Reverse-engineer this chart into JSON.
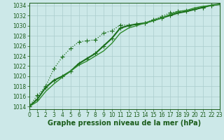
{
  "x": [
    0,
    1,
    2,
    3,
    4,
    5,
    6,
    7,
    8,
    9,
    10,
    11,
    12,
    13,
    14,
    15,
    16,
    17,
    18,
    19,
    20,
    21,
    22,
    23
  ],
  "lines": [
    {
      "label": "line_dotted_high",
      "y": [
        1014.1,
        1016.2,
        1018.0,
        1021.5,
        1023.8,
        1025.5,
        1026.8,
        1027.0,
        1027.2,
        1028.5,
        1029.0,
        1030.1,
        1030.1,
        1030.2,
        1030.5,
        1031.2,
        1031.8,
        1032.5,
        1032.8,
        1033.0,
        1033.2,
        1033.6,
        1034.0,
        1034.2
      ],
      "color": "#1a6e1a",
      "linewidth": 0.9,
      "marker": "+",
      "markersize": 4,
      "markeredgewidth": 0.8,
      "linestyle": ":"
    },
    {
      "label": "line_solid_main",
      "y": [
        1014.0,
        1015.5,
        1017.8,
        1019.2,
        1020.0,
        1021.0,
        1022.5,
        1023.5,
        1024.5,
        1026.0,
        1027.5,
        1029.5,
        1030.0,
        1030.3,
        1030.5,
        1031.0,
        1031.5,
        1032.0,
        1032.5,
        1032.8,
        1033.2,
        1033.6,
        1034.0,
        1034.2
      ],
      "color": "#1a6e1a",
      "linewidth": 1.5,
      "marker": "+",
      "markersize": 4,
      "markeredgewidth": 0.8,
      "linestyle": "-"
    },
    {
      "label": "line_solid_low",
      "y": [
        1014.0,
        1015.0,
        1017.0,
        1018.5,
        1019.8,
        1021.0,
        1022.2,
        1023.0,
        1024.0,
        1025.0,
        1026.5,
        1028.5,
        1029.5,
        1030.0,
        1030.5,
        1031.0,
        1031.5,
        1032.2,
        1032.8,
        1033.0,
        1033.5,
        1033.8,
        1034.0,
        1034.2
      ],
      "color": "#2e8b2e",
      "linewidth": 1.0,
      "marker": null,
      "markersize": 0,
      "markeredgewidth": 0,
      "linestyle": "-"
    }
  ],
  "xlim": [
    0,
    23
  ],
  "ylim": [
    1013.5,
    1034.5
  ],
  "yticks": [
    1014,
    1016,
    1018,
    1020,
    1022,
    1024,
    1026,
    1028,
    1030,
    1032,
    1034
  ],
  "xticks": [
    0,
    1,
    2,
    3,
    4,
    5,
    6,
    7,
    8,
    9,
    10,
    11,
    12,
    13,
    14,
    15,
    16,
    17,
    18,
    19,
    20,
    21,
    22,
    23
  ],
  "xlabel": "Graphe pression niveau de la mer (hPa)",
  "xlabel_fontsize": 7,
  "xlabel_color": "#1a5c1a",
  "tick_fontsize": 5.5,
  "tick_color": "#1a5c1a",
  "background_color": "#cce8e8",
  "grid_color": "#aacccc",
  "grid_linewidth": 0.5,
  "axis_color": "#1a5c1a"
}
